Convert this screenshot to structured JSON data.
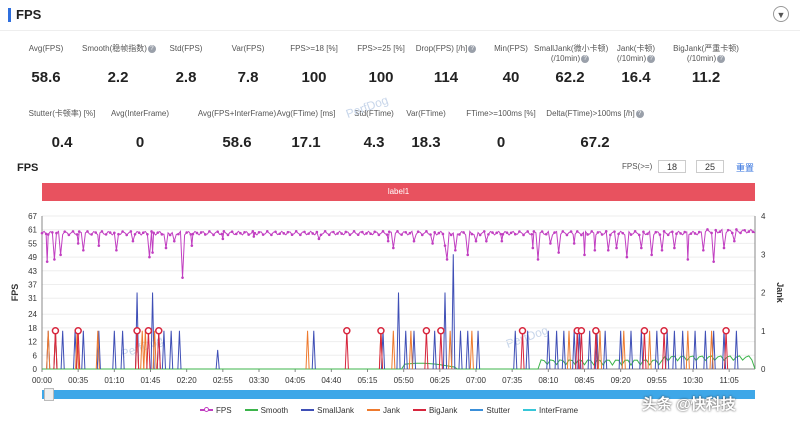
{
  "header": {
    "title": "FPS",
    "collapse_icon": "chevron-down-icon"
  },
  "stats_row1": [
    {
      "label": "Avg(FPS)",
      "value": "58.6",
      "help": false
    },
    {
      "label": "Smooth(稳帧指数)",
      "value": "2.2",
      "help": true
    },
    {
      "label": "Std(FPS)",
      "value": "2.8",
      "help": false
    },
    {
      "label": "Var(FPS)",
      "value": "7.8",
      "help": false
    },
    {
      "label": "FPS>=18 [%]",
      "value": "100",
      "help": false
    },
    {
      "label": "FPS>=25 [%]",
      "value": "100",
      "help": false
    },
    {
      "label": "Drop(FPS) [/h]",
      "value": "114",
      "help": true
    },
    {
      "label": "Min(FPS)",
      "value": "40",
      "help": false
    },
    {
      "label": "SmallJank(微小卡顿)",
      "label2": "(/10min)",
      "value": "62.2",
      "help": true
    },
    {
      "label": "Jank(卡顿)",
      "label2": "(/10min)",
      "value": "16.4",
      "help": true
    },
    {
      "label": "BigJank(严重卡顿)",
      "label2": "(/10min)",
      "value": "11.2",
      "help": true
    }
  ],
  "stats_row2": [
    {
      "label": "Stutter(卡顿率) [%]",
      "value": "0.4",
      "help": false
    },
    {
      "label": "Avg(InterFrame)",
      "value": "0",
      "help": false
    },
    {
      "label": "Avg(FPS+InterFrame)",
      "value": "58.6",
      "help": false
    },
    {
      "label": "Avg(FTime) [ms]",
      "value": "17.1",
      "help": false
    },
    {
      "label": "Std(FTime)",
      "value": "4.3",
      "help": false
    },
    {
      "label": "Var(FTime)",
      "value": "18.3",
      "help": false
    },
    {
      "label": "FTime>=100ms [%]",
      "value": "0",
      "help": false
    },
    {
      "label": "Delta(FTime)>100ms [/h]",
      "value": "67.2",
      "help": true
    }
  ],
  "chart_header": {
    "title": "FPS",
    "threshold_label": "FPS(>=)",
    "threshold1": "18",
    "threshold2": "25",
    "reset": "重置"
  },
  "banner_label": "label1",
  "watermark": "PerfDog",
  "source_watermark": "头条 @快科技",
  "chart_data": {
    "type": "line",
    "x_ticks": [
      "00:00",
      "00:35",
      "01:10",
      "01:45",
      "02:20",
      "02:55",
      "03:30",
      "04:05",
      "04:40",
      "05:15",
      "05:50",
      "06:25",
      "07:00",
      "07:35",
      "08:10",
      "08:45",
      "09:20",
      "09:55",
      "10:30",
      "11:05"
    ],
    "x_range_sec": [
      0,
      690
    ],
    "ylabel": "FPS",
    "y2label": "Jank",
    "ylim": [
      0,
      67
    ],
    "y_ticks": [
      0,
      6,
      12,
      18,
      24,
      31,
      37,
      43,
      49,
      55,
      61,
      67
    ],
    "y2lim": [
      0,
      4
    ],
    "y2_ticks": [
      0,
      1,
      2,
      3,
      4
    ],
    "grid": true,
    "legend_position": "bottom",
    "series": [
      {
        "name": "FPS",
        "axis": "left",
        "color": "#c13fc1",
        "baseline": 59.5,
        "dips": [
          [
            5,
            47
          ],
          [
            12,
            48
          ],
          [
            18,
            50
          ],
          [
            35,
            55
          ],
          [
            40,
            52
          ],
          [
            55,
            54
          ],
          [
            72,
            52
          ],
          [
            88,
            56
          ],
          [
            104,
            49
          ],
          [
            107,
            51
          ],
          [
            120,
            53
          ],
          [
            128,
            56
          ],
          [
            136,
            40
          ],
          [
            145,
            54
          ],
          [
            175,
            57
          ],
          [
            205,
            58
          ],
          [
            268,
            57
          ],
          [
            335,
            56
          ],
          [
            340,
            53
          ],
          [
            360,
            56
          ],
          [
            378,
            55
          ],
          [
            390,
            54
          ],
          [
            392,
            48
          ],
          [
            400,
            52
          ],
          [
            412,
            50
          ],
          [
            420,
            56
          ],
          [
            430,
            56
          ],
          [
            445,
            56
          ],
          [
            475,
            53
          ],
          [
            480,
            48
          ],
          [
            492,
            55
          ],
          [
            500,
            51
          ],
          [
            515,
            55
          ],
          [
            525,
            50
          ],
          [
            535,
            52
          ],
          [
            548,
            52
          ],
          [
            556,
            53
          ],
          [
            566,
            49
          ],
          [
            580,
            53
          ],
          [
            590,
            50
          ],
          [
            600,
            52
          ],
          [
            612,
            53
          ],
          [
            625,
            48
          ],
          [
            640,
            52
          ],
          [
            650,
            47
          ],
          [
            660,
            53
          ],
          [
            670,
            56
          ]
        ]
      },
      {
        "name": "Smooth",
        "axis": "right",
        "color": "#3cb44b"
      },
      {
        "name": "SmallJank",
        "axis": "right",
        "color": "#3f4fb6",
        "spikes": [
          [
            6,
            1
          ],
          [
            13,
            1
          ],
          [
            20,
            1
          ],
          [
            32,
            1
          ],
          [
            40,
            1
          ],
          [
            55,
            1
          ],
          [
            70,
            1
          ],
          [
            78,
            1
          ],
          [
            92,
            2
          ],
          [
            107,
            2
          ],
          [
            113,
            1
          ],
          [
            118,
            1
          ],
          [
            125,
            1
          ],
          [
            133,
            1
          ],
          [
            170,
            0.5
          ],
          [
            263,
            1
          ],
          [
            330,
            1
          ],
          [
            345,
            2
          ],
          [
            352,
            1
          ],
          [
            360,
            1
          ],
          [
            380,
            1
          ],
          [
            390,
            2
          ],
          [
            398,
            3
          ],
          [
            405,
            1
          ],
          [
            412,
            1
          ],
          [
            422,
            1
          ],
          [
            458,
            1
          ],
          [
            470,
            1
          ],
          [
            490,
            1
          ],
          [
            498,
            1
          ],
          [
            505,
            1
          ],
          [
            515,
            1
          ],
          [
            520,
            1
          ],
          [
            530,
            1
          ],
          [
            537,
            1
          ],
          [
            545,
            1
          ],
          [
            560,
            1
          ],
          [
            570,
            1
          ],
          [
            580,
            1
          ],
          [
            595,
            1
          ],
          [
            605,
            1
          ],
          [
            612,
            1
          ],
          [
            620,
            1
          ],
          [
            632,
            1
          ],
          [
            642,
            1
          ],
          [
            650,
            1
          ],
          [
            660,
            1
          ],
          [
            672,
            1
          ]
        ]
      },
      {
        "name": "Jank",
        "axis": "right",
        "color": "#ee7a2e",
        "spikes": [
          [
            6,
            1
          ],
          [
            13,
            1
          ],
          [
            34,
            1
          ],
          [
            54,
            1
          ],
          [
            92,
            1
          ],
          [
            97,
            1
          ],
          [
            100,
            1
          ],
          [
            109,
            1
          ],
          [
            257,
            1
          ],
          [
            328,
            1
          ],
          [
            340,
            1
          ],
          [
            357,
            1
          ],
          [
            395,
            1
          ],
          [
            416,
            1
          ],
          [
            510,
            1
          ],
          [
            540,
            1
          ],
          [
            563,
            1
          ],
          [
            588,
            1
          ],
          [
            625,
            1
          ],
          [
            648,
            1
          ]
        ]
      },
      {
        "name": "BigJank",
        "axis": "right",
        "color": "#d7263d",
        "spikes": [
          [
            13,
            1
          ],
          [
            35,
            1
          ],
          [
            92,
            1
          ],
          [
            103,
            1
          ],
          [
            113,
            1
          ],
          [
            295,
            1
          ],
          [
            328,
            1
          ],
          [
            372,
            1
          ],
          [
            386,
            1
          ],
          [
            465,
            1
          ],
          [
            518,
            1
          ],
          [
            522,
            1
          ],
          [
            536,
            1
          ],
          [
            583,
            1
          ],
          [
            602,
            1
          ],
          [
            662,
            1
          ]
        ]
      },
      {
        "name": "Stutter",
        "axis": "right",
        "color": "#3a8fd9"
      },
      {
        "name": "InterFrame",
        "axis": "right",
        "color": "#37c6d8"
      }
    ]
  }
}
